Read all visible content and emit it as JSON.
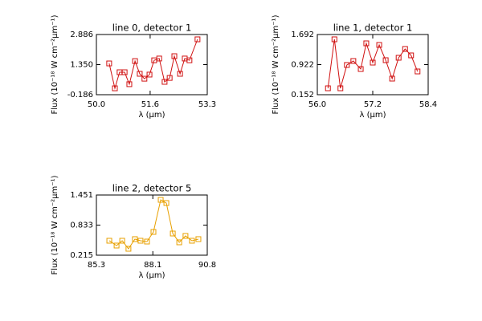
{
  "chart_data": [
    {
      "type": "line",
      "title": "line 0, detector 1",
      "xlabel": "λ (μm)",
      "ylabel": "Flux (10⁻¹⁸ W cm⁻²μm⁻¹)",
      "color": "#d01010",
      "x": [
        50.38,
        50.55,
        50.69,
        50.84,
        50.98,
        51.15,
        51.29,
        51.43,
        51.58,
        51.72,
        51.87,
        52.03,
        52.18,
        52.32,
        52.49,
        52.63,
        52.77,
        53.01
      ],
      "values": [
        1.41,
        0.14,
        0.96,
        0.96,
        0.35,
        1.53,
        0.88,
        0.63,
        0.84,
        1.57,
        1.66,
        0.47,
        0.67,
        1.78,
        0.88,
        1.66,
        1.57,
        2.64
      ],
      "xlim": [
        50.0,
        53.3
      ],
      "xticks": [
        {
          "value": 50.0,
          "label": "50.0"
        },
        51.6,
        53.3
      ],
      "ylim": [
        -0.186,
        2.886
      ],
      "yticks": [
        -0.186,
        {
          "value": 1.35,
          "label": "1.350"
        },
        2.886
      ]
    },
    {
      "type": "line",
      "title": "line 1, detector 1",
      "xlabel": "λ (μm)",
      "ylabel": "Flux (10⁻¹⁸ W cm⁻²μm⁻¹)",
      "color": "#d01010",
      "x": [
        56.23,
        56.37,
        56.5,
        56.64,
        56.78,
        56.94,
        57.06,
        57.2,
        57.34,
        57.48,
        57.62,
        57.76,
        57.9,
        58.03,
        58.17
      ],
      "values": [
        0.316,
        1.569,
        0.316,
        0.912,
        1.014,
        0.809,
        1.466,
        0.973,
        1.425,
        1.035,
        0.563,
        1.097,
        1.322,
        1.158,
        0.747
      ],
      "xlim": [
        56.0,
        58.4
      ],
      "xticks": [
        {
          "value": 56.0,
          "label": "56.0"
        },
        57.2,
        58.4
      ],
      "ylim": [
        0.152,
        1.692
      ],
      "yticks": [
        0.152,
        0.922,
        1.692
      ]
    },
    {
      "type": "line",
      "title": "line 2, detector 5",
      "xlabel": "λ (μm)",
      "ylabel": "Flux (10⁻¹⁸ W cm⁻²μm⁻¹)",
      "color": "#e8a000",
      "x": [
        85.94,
        86.3,
        86.58,
        86.89,
        87.21,
        87.49,
        87.81,
        88.13,
        88.49,
        88.77,
        89.09,
        89.41,
        89.72,
        90.04,
        90.36
      ],
      "values": [
        0.512,
        0.413,
        0.512,
        0.347,
        0.545,
        0.512,
        0.495,
        0.693,
        1.352,
        1.286,
        0.66,
        0.479,
        0.611,
        0.512,
        0.545
      ],
      "xlim": [
        85.3,
        90.8
      ],
      "xticks": [
        85.3,
        88.1,
        90.8
      ],
      "ylim": [
        0.215,
        1.451
      ],
      "yticks": [
        0.215,
        0.833,
        1.451
      ]
    }
  ]
}
